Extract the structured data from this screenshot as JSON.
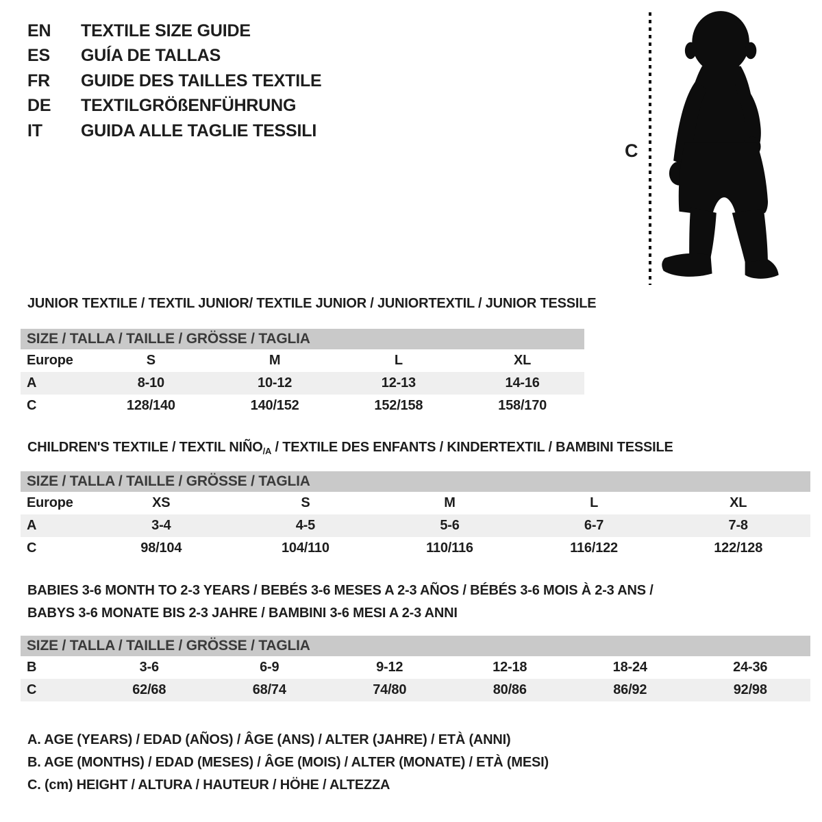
{
  "colors": {
    "text": "#1d1d1d",
    "size_bar_bg": "#c9c9c9",
    "size_bar_text": "#3a3a3a",
    "stripe_bg": "#efefef",
    "silhouette": "#0d0d0d"
  },
  "languages": [
    {
      "code": "EN",
      "title": "TEXTILE SIZE GUIDE"
    },
    {
      "code": "ES",
      "title": "GUÍA DE TALLAS"
    },
    {
      "code": "FR",
      "title": "GUIDE DES TAILLES TEXTILE"
    },
    {
      "code": "DE",
      "title": "TEXTILGRÖßENFÜHRUNG"
    },
    {
      "code": "IT",
      "title": "GUIDA ALLE TAGLIE TESSILI"
    }
  ],
  "figure": {
    "measure_label": "C",
    "description": "toddler-silhouette"
  },
  "tables": [
    {
      "title": "JUNIOR TEXTILE / TEXTIL JUNIOR/ TEXTILE JUNIOR / JUNIORTEXTIL / JUNIOR TESSILE",
      "size_header": "SIZE / TALLA / TAILLE / GRÖSSE / TAGLIA",
      "rows": [
        {
          "label": "Europe",
          "cells": [
            "S",
            "M",
            "L",
            "XL"
          ]
        },
        {
          "label": "A",
          "cells": [
            "8-10",
            "10-12",
            "12-13",
            "14-16"
          ]
        },
        {
          "label": "C",
          "cells": [
            "128/140",
            "140/152",
            "152/158",
            "158/170"
          ]
        }
      ]
    },
    {
      "title_parts": {
        "pre": "CHILDREN'S TEXTILE / TEXTIL NIÑO",
        "sub": "/A",
        "post": " / TEXTILE DES ENFANTS / KINDERTEXTIL / BAMBINI TESSILE"
      },
      "size_header": "SIZE / TALLA / TAILLE / GRÖSSE / TAGLIA",
      "rows": [
        {
          "label": "Europe",
          "cells": [
            "XS",
            "S",
            "M",
            "L",
            "XL"
          ]
        },
        {
          "label": "A",
          "cells": [
            "3-4",
            "4-5",
            "5-6",
            "6-7",
            "7-8"
          ]
        },
        {
          "label": "C",
          "cells": [
            "98/104",
            "104/110",
            "110/116",
            "116/122",
            "122/128"
          ]
        }
      ]
    },
    {
      "title_lines": [
        "BABIES 3-6 MONTH TO 2-3 YEARS / BEBÉS 3-6 MESES A 2-3 AÑOS / BÉBÉS 3-6 MOIS À 2-3 ANS /",
        "BABYS 3-6 MONATE BIS 2-3 JAHRE / BAMBINI 3-6 MESI A 2-3 ANNI"
      ],
      "size_header": "SIZE / TALLA / TAILLE / GRÖSSE / TAGLIA",
      "rows": [
        {
          "label": "B",
          "cells": [
            "3-6",
            "6-9",
            "9-12",
            "12-18",
            "18-24",
            "24-36"
          ]
        },
        {
          "label": "C",
          "cells": [
            "62/68",
            "68/74",
            "74/80",
            "80/86",
            "86/92",
            "92/98"
          ]
        }
      ]
    }
  ],
  "legend": [
    "A. AGE (YEARS) / EDAD (AÑOS) / ÂGE (ANS) / ALTER (JAHRE) / ETÀ (ANNI)",
    "B. AGE (MONTHS) / EDAD (MESES) / ÂGE (MOIS) / ALTER (MONATE) / ETÀ (MESI)",
    "C. (cm) HEIGHT / ALTURA / HAUTEUR / HÖHE / ALTEZZA"
  ]
}
